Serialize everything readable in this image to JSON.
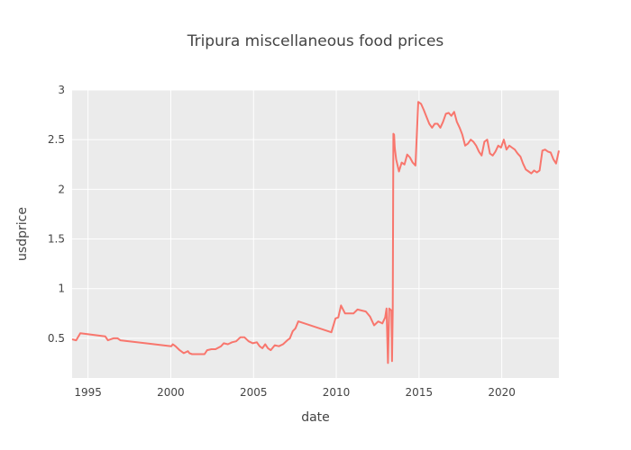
{
  "chart_data": {
    "type": "line",
    "title": "Tripura miscellaneous food prices",
    "xlabel": "date",
    "ylabel": "usdprice",
    "xlim": [
      "1994-01-15",
      "2023-06-15"
    ],
    "ylim": [
      0.1,
      3.0
    ],
    "x_ticks": [
      {
        "value": "1995-01-01",
        "label": "1995"
      },
      {
        "value": "2000-01-01",
        "label": "2000"
      },
      {
        "value": "2005-01-01",
        "label": "2005"
      },
      {
        "value": "2010-01-01",
        "label": "2010"
      },
      {
        "value": "2015-01-01",
        "label": "2015"
      },
      {
        "value": "2020-01-01",
        "label": "2020"
      }
    ],
    "y_ticks": [
      {
        "value": 0.5,
        "label": "0.5"
      },
      {
        "value": 1.0,
        "label": "1"
      },
      {
        "value": 1.5,
        "label": "1.5"
      },
      {
        "value": 2.0,
        "label": "2"
      },
      {
        "value": 2.5,
        "label": "2.5"
      },
      {
        "value": 3.0,
        "label": "3"
      }
    ],
    "grid": true,
    "background_color": "#ebebeb",
    "series": [
      {
        "color": "#f8766d",
        "x": [
          "1994-01-15",
          "1994-04-15",
          "1994-07-15",
          "1996-01-15",
          "1996-03-15",
          "1996-07-15",
          "1996-10-15",
          "1996-12-15",
          "2000-01-15",
          "2000-02-15",
          "2000-04-15",
          "2000-07-15",
          "2000-10-15",
          "2001-01-15",
          "2001-02-15",
          "2001-04-15",
          "2001-07-15",
          "2001-12-15",
          "2002-01-15",
          "2002-03-15",
          "2002-06-15",
          "2002-09-15",
          "2003-01-15",
          "2003-03-15",
          "2003-06-15",
          "2003-09-15",
          "2003-12-15",
          "2004-03-15",
          "2004-06-15",
          "2004-09-15",
          "2004-12-15",
          "2005-03-15",
          "2005-05-15",
          "2005-07-15",
          "2005-09-15",
          "2005-11-15",
          "2006-01-15",
          "2006-04-15",
          "2006-07-15",
          "2006-10-15",
          "2007-01-15",
          "2007-03-15",
          "2007-05-15",
          "2007-07-15",
          "2007-09-15",
          "2009-09-15",
          "2009-12-15",
          "2010-02-15",
          "2010-04-15",
          "2010-07-15",
          "2010-10-15",
          "2011-01-15",
          "2011-04-15",
          "2011-07-15",
          "2011-10-15",
          "2012-01-15",
          "2012-04-15",
          "2012-07-15",
          "2012-10-15",
          "2012-12-15",
          "2013-01-15",
          "2013-02-15",
          "2013-03-15",
          "2013-05-01",
          "2013-05-15",
          "2013-06-01",
          "2013-06-15",
          "2013-07-01",
          "2013-07-15",
          "2013-08-15",
          "2013-10-15",
          "2013-12-15",
          "2014-02-15",
          "2014-04-15",
          "2014-06-15",
          "2014-08-15",
          "2014-10-15",
          "2014-12-15",
          "2015-02-15",
          "2015-04-15",
          "2015-06-15",
          "2015-08-15",
          "2015-10-15",
          "2015-12-15",
          "2016-02-15",
          "2016-04-15",
          "2016-06-15",
          "2016-08-15",
          "2016-10-15",
          "2016-12-15",
          "2017-02-15",
          "2017-04-15",
          "2017-06-15",
          "2017-08-15",
          "2017-10-15",
          "2017-12-15",
          "2018-02-15",
          "2018-04-15",
          "2018-06-15",
          "2018-08-15",
          "2018-10-15",
          "2018-12-15",
          "2019-02-15",
          "2019-04-15",
          "2019-06-15",
          "2019-08-15",
          "2019-10-15",
          "2019-12-15",
          "2020-02-15",
          "2020-04-15",
          "2020-06-15",
          "2020-08-15",
          "2020-10-15",
          "2020-12-15",
          "2021-02-15",
          "2021-04-15",
          "2021-06-15",
          "2021-08-15",
          "2021-10-15",
          "2021-12-15",
          "2022-02-15",
          "2022-04-15",
          "2022-06-15",
          "2022-08-15",
          "2022-10-15",
          "2022-12-15",
          "2023-02-15",
          "2023-04-15",
          "2023-06-15"
        ],
        "y": [
          0.49,
          0.48,
          0.55,
          0.52,
          0.48,
          0.5,
          0.5,
          0.48,
          0.42,
          0.44,
          0.42,
          0.38,
          0.35,
          0.37,
          0.35,
          0.34,
          0.34,
          0.34,
          0.34,
          0.38,
          0.39,
          0.39,
          0.42,
          0.45,
          0.44,
          0.46,
          0.47,
          0.51,
          0.51,
          0.47,
          0.45,
          0.46,
          0.42,
          0.4,
          0.44,
          0.4,
          0.38,
          0.43,
          0.42,
          0.44,
          0.48,
          0.5,
          0.57,
          0.6,
          0.67,
          0.56,
          0.7,
          0.71,
          0.83,
          0.75,
          0.75,
          0.75,
          0.79,
          0.78,
          0.77,
          0.72,
          0.63,
          0.67,
          0.65,
          0.71,
          0.8,
          0.25,
          0.8,
          0.78,
          0.27,
          0.79,
          2.56,
          2.55,
          2.42,
          2.3,
          2.18,
          2.27,
          2.25,
          2.35,
          2.32,
          2.27,
          2.24,
          2.88,
          2.86,
          2.8,
          2.73,
          2.66,
          2.62,
          2.66,
          2.66,
          2.62,
          2.68,
          2.76,
          2.77,
          2.74,
          2.78,
          2.68,
          2.62,
          2.55,
          2.44,
          2.46,
          2.5,
          2.48,
          2.44,
          2.38,
          2.34,
          2.48,
          2.5,
          2.36,
          2.34,
          2.38,
          2.44,
          2.42,
          2.5,
          2.4,
          2.44,
          2.42,
          2.4,
          2.36,
          2.33,
          2.26,
          2.2,
          2.18,
          2.16,
          2.19,
          2.17,
          2.19,
          2.39,
          2.4,
          2.38,
          2.37,
          2.3,
          2.26,
          2.39
        ]
      }
    ]
  }
}
